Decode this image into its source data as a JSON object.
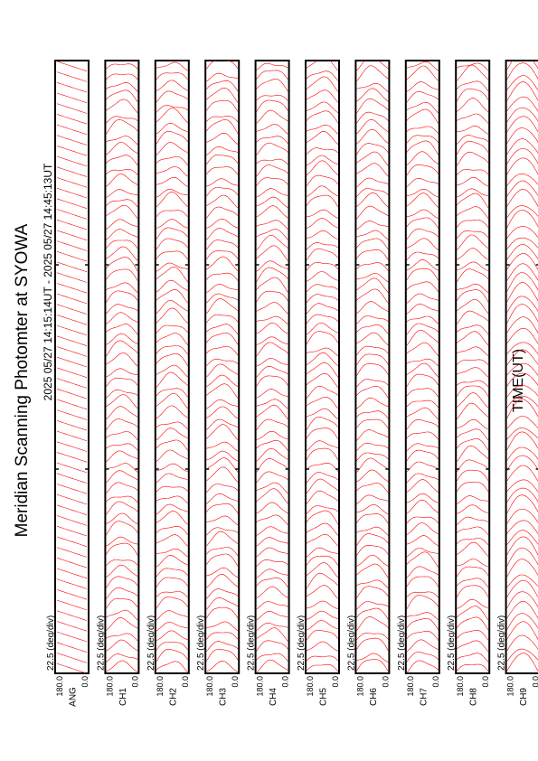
{
  "title": "Meridian Scanning Photomter at SYOWA",
  "subtitle": "2025 05/27 14:15:14UT - 2025 05/27 14:45:13UT",
  "xlabel": "TIME(UT)",
  "colors": {
    "trace": "#ff0000",
    "frame": "#000000",
    "background": "#ffffff"
  },
  "chart_data": {
    "type": "line",
    "title": "Meridian Scanning Photomter at SYOWA",
    "subtitle": "2025 05/27 14:15:14UT - 2025 05/27 14:45:13UT",
    "xlabel": "TIME(UT)",
    "x_range": [
      "1415",
      "1445"
    ],
    "x_ticks": [
      "1415",
      "1425",
      "1435",
      "1445"
    ],
    "y_range": [
      0.0,
      180.0
    ],
    "y_tick_labels": [
      "180.0",
      "0.0"
    ],
    "scale_label": "22.5 (deg/div)",
    "grid": false,
    "panels": [
      {
        "channel": "ANG",
        "kind": "angle",
        "scan_count": 58
      },
      {
        "channel": "CH1",
        "kind": "intensity",
        "scan_count": 58
      },
      {
        "channel": "CH2",
        "kind": "intensity",
        "scan_count": 58
      },
      {
        "channel": "CH3",
        "kind": "intensity",
        "scan_count": 58
      },
      {
        "channel": "CH4",
        "kind": "intensity",
        "scan_count": 58
      },
      {
        "channel": "CH5",
        "kind": "intensity",
        "scan_count": 58
      },
      {
        "channel": "CH6",
        "kind": "intensity",
        "scan_count": 58
      },
      {
        "channel": "CH7",
        "kind": "intensity",
        "scan_count": 58
      },
      {
        "channel": "CH8",
        "kind": "intensity",
        "scan_count": 58
      },
      {
        "channel": "CH9",
        "kind": "intensity",
        "scan_count": 58
      }
    ]
  }
}
